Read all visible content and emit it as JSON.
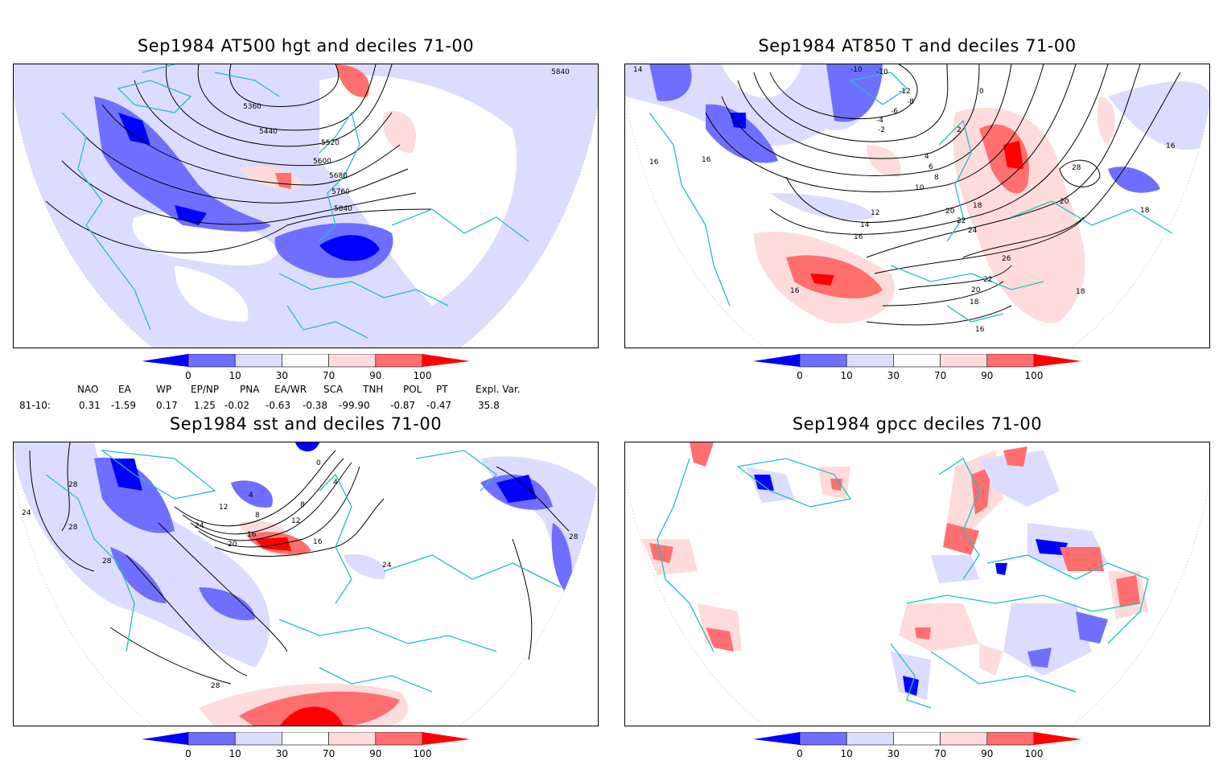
{
  "panels": [
    {
      "title": "Sep1984 AT500 hgt and deciles 71-00",
      "contour_labels": [
        "5360",
        "5440",
        "5520",
        "5600",
        "5680",
        "5760",
        "5840",
        "5840"
      ]
    },
    {
      "title": "Sep1984 AT850 T and deciles 71-00",
      "contour_labels": [
        "14",
        "-10",
        "-10",
        "-12",
        "-8",
        "-6",
        "-4",
        "-2",
        "0",
        "2",
        "4",
        "6",
        "8",
        "10",
        "12",
        "14",
        "16",
        "18",
        "20",
        "22",
        "24",
        "26",
        "28",
        "16",
        "16",
        "16",
        "18",
        "16",
        "18",
        "20",
        "22",
        "20",
        "18",
        "16"
      ]
    },
    {
      "title": "Sep1984 sst and deciles 71-00",
      "contour_labels": [
        "28",
        "24",
        "28",
        "28",
        "12",
        "8",
        "4",
        "16",
        "20",
        "24",
        "12",
        "8",
        "4",
        "0",
        "16",
        "24",
        "28",
        "28"
      ]
    },
    {
      "title": "Sep1984 gpcc deciles 71-00",
      "contour_labels": []
    }
  ],
  "colorbar": {
    "ticks": [
      "0",
      "10",
      "30",
      "70",
      "90",
      "100"
    ],
    "colors": [
      "#0000ff",
      "#6f6fff",
      "#dcdcff",
      "#ffffff",
      "#ffdcdc",
      "#ff6f6f",
      "#ff0000"
    ]
  },
  "indices": {
    "headers": [
      "NAO",
      "EA",
      "WP",
      "EP/NP",
      "PNA",
      "EA/WR",
      "SCA",
      "TNH",
      "POL",
      "PT",
      "Expl. Var."
    ],
    "row_label": "81-10:",
    "values": [
      "0.31",
      "-1.59",
      "0.17",
      "1.25",
      "-0.02",
      "-0.63",
      "-0.38",
      "-99.90",
      "-0.87",
      "-0.47",
      "35.8"
    ]
  },
  "colors": {
    "coast": "#20c0c0",
    "light_blue": "#dcdcff",
    "mid_blue": "#6f6fff",
    "blue": "#0000ff",
    "light_red": "#ffdcdc",
    "mid_red": "#ff6f6f",
    "red": "#ff0000"
  }
}
